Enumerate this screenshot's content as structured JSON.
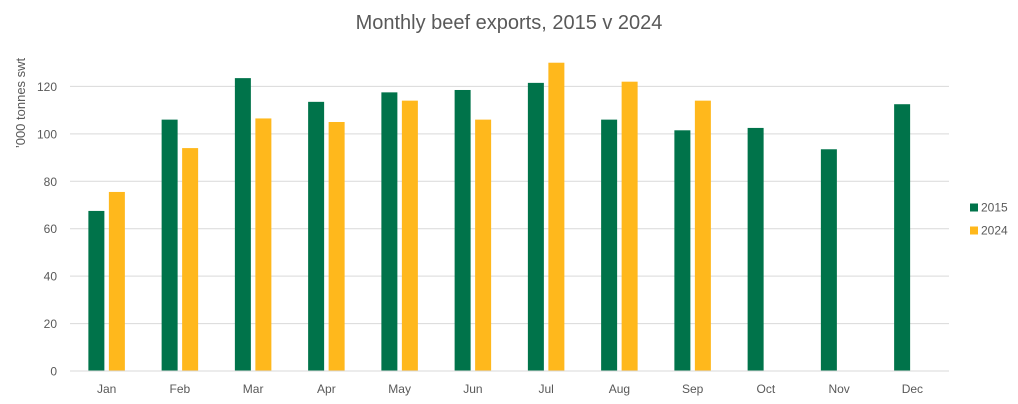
{
  "chart_data": {
    "type": "bar",
    "title": "Monthly beef exports, 2015 v 2024",
    "xlabel": "",
    "ylabel": "’000 tonnes swt",
    "categories": [
      "Jan",
      "Feb",
      "Mar",
      "Apr",
      "May",
      "Jun",
      "Jul",
      "Aug",
      "Sep",
      "Oct",
      "Nov",
      "Dec"
    ],
    "series": [
      {
        "name": "2015",
        "color": "#00734A",
        "values": [
          67.5,
          106,
          123.5,
          113.5,
          117.5,
          118.5,
          121.5,
          106,
          101.5,
          102.5,
          93.5,
          112.5
        ]
      },
      {
        "name": "2024",
        "color": "#FFB81C",
        "values": [
          75.5,
          94,
          106.5,
          105,
          114,
          106,
          130,
          122,
          114,
          null,
          null,
          null
        ]
      }
    ],
    "ylim": [
      0,
      140
    ],
    "yticks": [
      0,
      20,
      40,
      60,
      80,
      100,
      120
    ],
    "grid": true,
    "legend_position": "right"
  }
}
